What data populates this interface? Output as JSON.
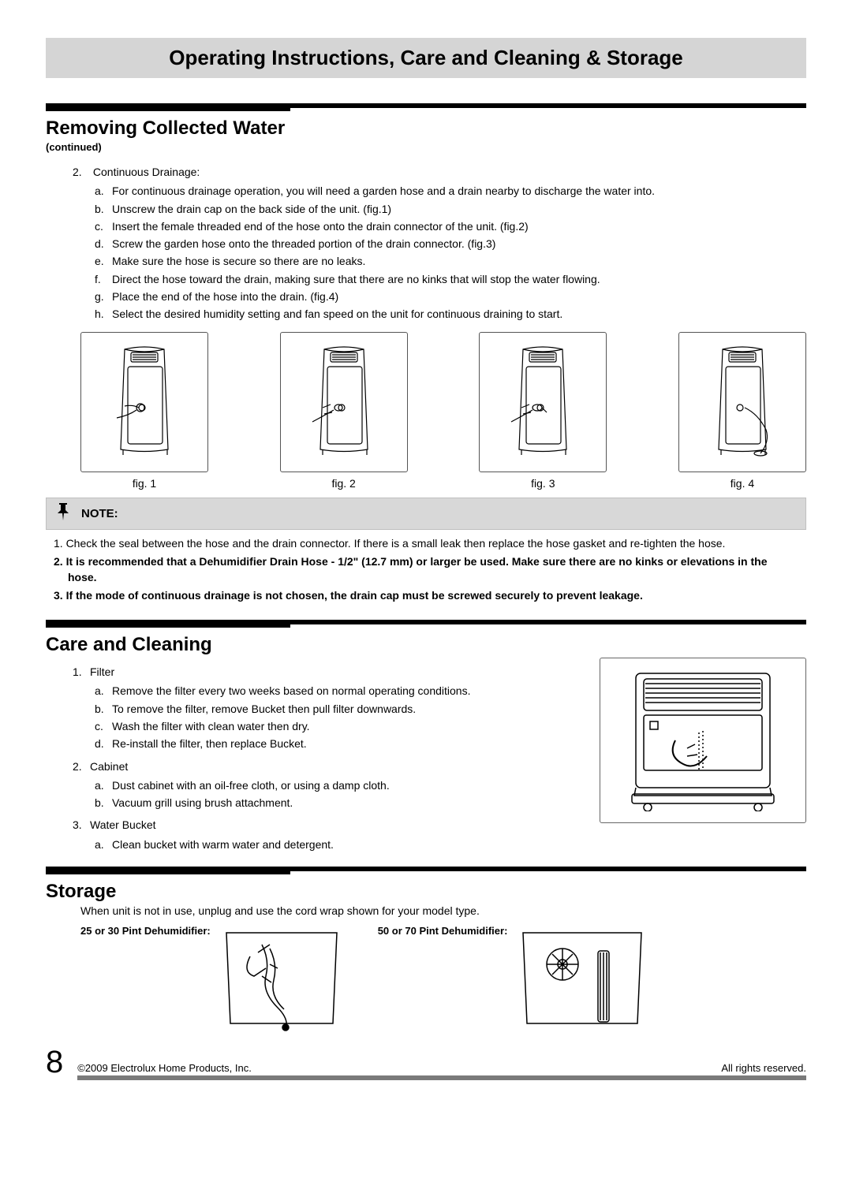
{
  "banner": {
    "title": "Operating Instructions, Care and Cleaning & Storage"
  },
  "section1": {
    "title": "Removing Collected Water",
    "subtitle": "(continued)",
    "item_num": "2.",
    "item_label": "Continuous Drainage:",
    "steps": [
      {
        "l": "a.",
        "t": "For continuous drainage operation, you will need a garden hose and a drain nearby to discharge the water into."
      },
      {
        "l": "b.",
        "t": "Unscrew the drain cap on the back side of the unit. (fig.1)"
      },
      {
        "l": "c.",
        "t": "Insert the female threaded end of the hose onto the drain connector of the unit. (fig.2)"
      },
      {
        "l": "d.",
        "t": "Screw the garden hose onto the threaded portion of the drain connector. (fig.3)"
      },
      {
        "l": "e.",
        "t": "Make sure the hose is secure so there are no leaks."
      },
      {
        "l": "f.",
        "t": "Direct the hose toward the drain, making sure that there are no kinks that will stop the water flowing."
      },
      {
        "l": "g.",
        "t": "Place the end of the hose into the drain. (fig.4)"
      },
      {
        "l": "h.",
        "t": "Select the desired humidity setting and fan speed on the unit for continuous draining to start."
      }
    ],
    "figs": [
      "fig. 1",
      "fig. 2",
      "fig. 3",
      "fig. 4"
    ]
  },
  "note": {
    "label": "NOTE:",
    "items": [
      {
        "n": "1.",
        "t": "Check the seal between the hose and the drain connector. If there is a small leak then replace the hose gasket and re-tighten the hose.",
        "bold": false
      },
      {
        "n": "2.",
        "t": "It is recommended that a Dehumidifier Drain Hose - 1/2\" (12.7 mm) or larger be used. Make sure there are no kinks or elevations in the hose.",
        "bold": true
      },
      {
        "n": "3.",
        "t": "If the mode of continuous drainage is not chosen, the drain cap must be screwed securely to prevent leakage.",
        "bold": true
      }
    ]
  },
  "section2": {
    "title": "Care and Cleaning",
    "items": [
      {
        "n": "1.",
        "label": "Filter",
        "subs": [
          {
            "l": "a.",
            "t": "Remove the filter every two weeks based on normal operating conditions."
          },
          {
            "l": "b.",
            "t": "To remove the filter, remove Bucket then pull filter downwards."
          },
          {
            "l": "c.",
            "t": "Wash the filter with clean water then dry."
          },
          {
            "l": "d.",
            "t": "Re-install the filter, then replace Bucket."
          }
        ]
      },
      {
        "n": "2.",
        "label": "Cabinet",
        "subs": [
          {
            "l": "a.",
            "t": "Dust cabinet with an oil-free cloth, or using a damp cloth."
          },
          {
            "l": "b.",
            "t": "Vacuum grill using brush attachment."
          }
        ]
      },
      {
        "n": "3.",
        "label": "Water Bucket",
        "subs": [
          {
            "l": "a.",
            "t": "Clean bucket with warm water and detergent."
          }
        ]
      }
    ]
  },
  "section3": {
    "title": "Storage",
    "intro": "When unit is not in use, unplug and use the cord wrap shown for your model type.",
    "col1_label": "25 or 30 Pint Dehumidifier:",
    "col2_label": "50 or 70 Pint Dehumidifier:"
  },
  "footer": {
    "page": "8",
    "copyright": "©2009 Electrolux Home Products, Inc.",
    "rights": "All rights reserved."
  },
  "colors": {
    "banner_bg": "#d5d5d5",
    "note_bg": "#d8d8d8",
    "footer_rule": "#7a7a7a"
  }
}
